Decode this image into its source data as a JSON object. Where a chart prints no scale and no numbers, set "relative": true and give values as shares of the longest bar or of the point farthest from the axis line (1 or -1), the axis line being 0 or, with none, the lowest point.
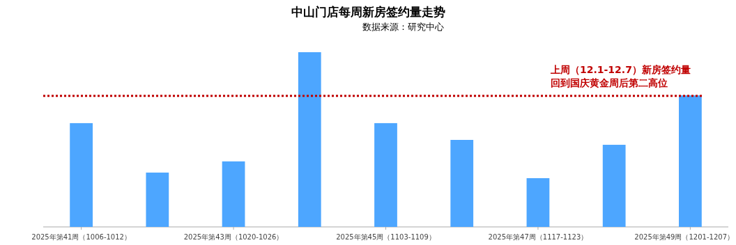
{
  "chart_data": {
    "type": "bar",
    "title": "中山门店每周新房签约量走势",
    "subtitle": "数据来源：研究中心",
    "categories": [
      "2025年第41周（1006-1012）",
      null,
      "2025年第43周（1020-1026）",
      null,
      "2025年第45周（1103-1109）",
      null,
      "2025年第47周（1117-1123）",
      null,
      "2025年第49周（1201-1207）"
    ],
    "values": [
      0.594,
      0.311,
      0.375,
      1,
      0.594,
      0.498,
      0.279,
      0.47,
      0.753
    ],
    "color": "#4da6ff",
    "relative": true,
    "ref_lines": [
      {
        "axis": "y",
        "value": 0.75,
        "color": "#c00000",
        "line_style": "dotted"
      }
    ],
    "annotations": [
      "上周（12.1-12.7）新房签约量",
      "回到国庆黄金周后第二高位"
    ]
  }
}
